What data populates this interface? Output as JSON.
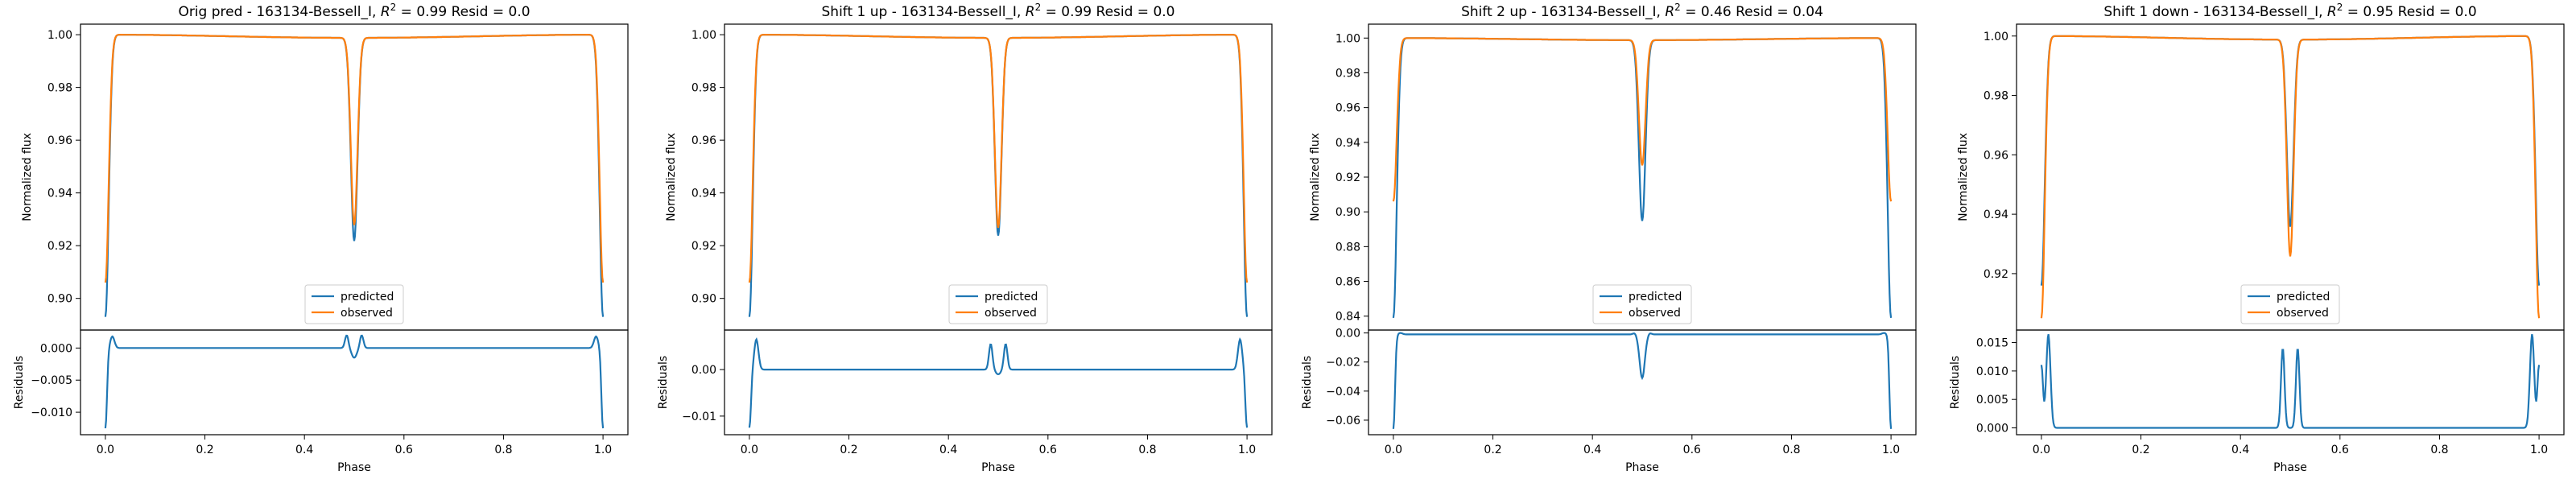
{
  "colors": {
    "predicted": "#1f77b4",
    "observed": "#ff7f0e",
    "axes": "#000000",
    "background": "#ffffff"
  },
  "chart_data": [
    {
      "type": "line",
      "title": "Orig pred - 163134-Bessell_I, R² = 0.99 Resid = 0.0",
      "title_prefix": "Orig pred - 163134-Bessell_I, ",
      "title_r2": "0.99",
      "title_resid": "Resid = 0.0",
      "xlabel": "Phase",
      "ylabel": "Normalized flux",
      "resid_ylabel": "Residuals",
      "legend": {
        "position": "lower center",
        "entries": [
          "predicted",
          "observed"
        ]
      },
      "xlim": [
        -0.05,
        1.05
      ],
      "xticks": [
        0.0,
        0.2,
        0.4,
        0.6,
        0.8,
        1.0
      ],
      "xtick_labels": [
        "0.0",
        "0.2",
        "0.4",
        "0.6",
        "0.8",
        "1.0"
      ],
      "ylim": [
        0.888,
        1.004
      ],
      "yticks": [
        0.9,
        0.92,
        0.94,
        0.96,
        0.98,
        1.0
      ],
      "ytick_labels": [
        "0.90",
        "0.92",
        "0.94",
        "0.96",
        "0.98",
        "1.00"
      ],
      "resid_ylim": [
        -0.0135,
        0.0028
      ],
      "resid_yticks": [
        -0.01,
        -0.005,
        0.0
      ],
      "resid_ytick_labels": [
        "−0.010",
        "−0.005",
        "0.000"
      ],
      "curve": {
        "predicted_edge": 0.893,
        "predicted_min": 0.923,
        "observed_edge": 0.906,
        "observed_min": 0.929
      },
      "resid": {
        "edge_low": -0.0125,
        "edge_peak": 0.0018,
        "mid_pos": 0.002,
        "mid_neg": -0.0015,
        "base": 0.0
      }
    },
    {
      "type": "line",
      "title": "Shift 1 up - 163134-Bessell_I, R² = 0.99 Resid = 0.0",
      "title_prefix": "Shift 1 up - 163134-Bessell_I, ",
      "title_r2": "0.99",
      "title_resid": "Resid = 0.0",
      "xlabel": "Phase",
      "ylabel": "Normalized flux",
      "resid_ylabel": "Residuals",
      "legend": {
        "position": "lower center",
        "entries": [
          "predicted",
          "observed"
        ]
      },
      "xlim": [
        -0.05,
        1.05
      ],
      "xticks": [
        0.0,
        0.2,
        0.4,
        0.6,
        0.8,
        1.0
      ],
      "xtick_labels": [
        "0.0",
        "0.2",
        "0.4",
        "0.6",
        "0.8",
        "1.0"
      ],
      "ylim": [
        0.888,
        1.004
      ],
      "yticks": [
        0.9,
        0.92,
        0.94,
        0.96,
        0.98,
        1.0
      ],
      "ytick_labels": [
        "0.90",
        "0.92",
        "0.94",
        "0.96",
        "0.98",
        "1.00"
      ],
      "resid_ylim": [
        -0.014,
        0.0085
      ],
      "resid_yticks": [
        -0.01,
        0.0
      ],
      "resid_ytick_labels": [
        "−0.01",
        "0.00"
      ],
      "curve": {
        "predicted_edge": 0.893,
        "predicted_min": 0.925,
        "observed_edge": 0.906,
        "observed_min": 0.928
      },
      "resid": {
        "edge_low": -0.0125,
        "edge_peak": 0.0065,
        "mid_pos": 0.0055,
        "mid_neg": -0.001,
        "base": 0.0
      }
    },
    {
      "type": "line",
      "title": "Shift 2 up - 163134-Bessell_I, R² = 0.46 Resid = 0.04",
      "title_prefix": "Shift 2 up - 163134-Bessell_I, ",
      "title_r2": "0.46",
      "title_resid": "Resid = 0.04",
      "xlabel": "Phase",
      "ylabel": "Normalized flux",
      "resid_ylabel": "Residuals",
      "legend": {
        "position": "lower center",
        "entries": [
          "predicted",
          "observed"
        ]
      },
      "xlim": [
        -0.05,
        1.05
      ],
      "xticks": [
        0.0,
        0.2,
        0.4,
        0.6,
        0.8,
        1.0
      ],
      "xtick_labels": [
        "0.0",
        "0.2",
        "0.4",
        "0.6",
        "0.8",
        "1.0"
      ],
      "ylim": [
        0.832,
        1.008
      ],
      "yticks": [
        0.84,
        0.86,
        0.88,
        0.9,
        0.92,
        0.94,
        0.96,
        0.98,
        1.0
      ],
      "ytick_labels": [
        "0.84",
        "0.86",
        "0.88",
        "0.90",
        "0.92",
        "0.94",
        "0.96",
        "0.98",
        "1.00"
      ],
      "resid_ylim": [
        -0.07,
        0.002
      ],
      "resid_yticks": [
        -0.06,
        -0.04,
        -0.02,
        0.0
      ],
      "resid_ytick_labels": [
        "−0.06",
        "−0.04",
        "−0.02",
        "0.00"
      ],
      "curve": {
        "predicted_edge": 0.839,
        "predicted_min": 0.896,
        "observed_edge": 0.906,
        "observed_min": 0.928
      },
      "resid": {
        "edge_low": -0.066,
        "edge_peak": 0.0,
        "mid_pos": 0.0,
        "mid_neg": -0.031,
        "base": -0.001
      }
    },
    {
      "type": "line",
      "title": "Shift 1 down - 163134-Bessell_I, R² = 0.95 Resid = 0.0",
      "title_prefix": "Shift 1 down - 163134-Bessell_I, ",
      "title_r2": "0.95",
      "title_resid": "Resid = 0.0",
      "xlabel": "Phase",
      "ylabel": "Normalized flux",
      "resid_ylabel": "Residuals",
      "legend": {
        "position": "lower center",
        "entries": [
          "predicted",
          "observed"
        ]
      },
      "xlim": [
        -0.05,
        1.05
      ],
      "xticks": [
        0.0,
        0.2,
        0.4,
        0.6,
        0.8,
        1.0
      ],
      "xtick_labels": [
        "0.0",
        "0.2",
        "0.4",
        "0.6",
        "0.8",
        "1.0"
      ],
      "ylim": [
        0.901,
        1.004
      ],
      "yticks": [
        0.92,
        0.94,
        0.96,
        0.98,
        1.0
      ],
      "ytick_labels": [
        "0.92",
        "0.94",
        "0.96",
        "0.98",
        "1.00"
      ],
      "resid_ylim": [
        -0.0012,
        0.0172
      ],
      "resid_yticks": [
        0.0,
        0.005,
        0.01,
        0.015
      ],
      "resid_ytick_labels": [
        "0.000",
        "0.005",
        "0.010",
        "0.015"
      ],
      "curve": {
        "predicted_edge": 0.916,
        "predicted_min": 0.937,
        "observed_edge": 0.905,
        "observed_min": 0.927
      },
      "resid": {
        "edge_low": 0.011,
        "edge_peak": 0.0165,
        "mid_pos": 0.014,
        "mid_neg": 0.0,
        "base": 0.0
      }
    }
  ]
}
